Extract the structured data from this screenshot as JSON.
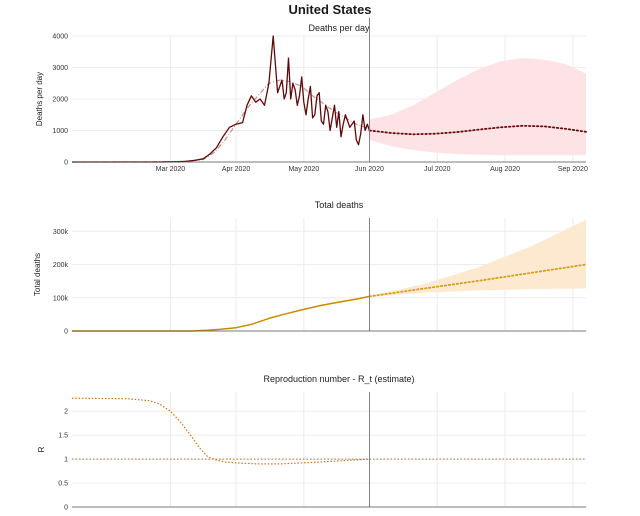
{
  "page": {
    "title": "United States"
  },
  "chart_data": [
    {
      "id": "deaths",
      "type": "line",
      "title": "Deaths per day",
      "ylabel": "Deaths per day",
      "xlabel": "",
      "ylim": [
        0,
        4000
      ],
      "y_ticks": [
        0,
        1000,
        2000,
        3000,
        4000
      ],
      "y_tick_labels": [
        "0",
        "1000",
        "2000",
        "3000",
        "4000"
      ],
      "x_range_days": [
        0,
        235
      ],
      "x_ticks_days": [
        45,
        75,
        106,
        136,
        167,
        198,
        229
      ],
      "x_tick_labels": [
        "Mar 2020",
        "Apr 2020",
        "May 2020",
        "Jun 2020",
        "Jul 2020",
        "Aug 2020",
        "Sep 2020"
      ],
      "vline_day": 136,
      "colors": {
        "observed": "#5e0a0a",
        "smoothed": "#c98f8f",
        "forecast": "#6b0c0c",
        "band": "#fde3e6"
      },
      "observed": {
        "x": [
          0,
          40,
          44,
          48,
          52,
          56,
          60,
          63,
          66,
          69,
          72,
          75,
          78,
          80,
          82,
          84,
          86,
          88,
          90,
          92,
          94,
          95,
          96,
          97,
          98,
          99,
          100,
          101,
          102,
          103,
          104,
          105,
          106,
          107,
          108,
          109,
          110,
          111,
          112,
          113,
          114,
          115,
          116,
          117,
          118,
          119,
          120,
          121,
          122,
          123,
          124,
          125,
          126,
          127,
          128,
          129,
          130,
          131,
          132,
          133,
          134,
          135,
          136
        ],
        "y": [
          0,
          0,
          5,
          10,
          20,
          50,
          100,
          250,
          450,
          800,
          1100,
          1200,
          1250,
          1800,
          2100,
          1900,
          2000,
          1800,
          2500,
          4000,
          2200,
          2400,
          2600,
          2000,
          2200,
          3300,
          2000,
          2500,
          2300,
          1800,
          2100,
          2700,
          1900,
          1500,
          2000,
          2400,
          1400,
          1500,
          2100,
          2200,
          1300,
          1200,
          1800,
          1600,
          1000,
          1400,
          1800,
          1100,
          1600,
          800,
          1200,
          1500,
          1300,
          1100,
          1200,
          1300,
          700,
          550,
          900,
          1500,
          1000,
          1200,
          1000
        ]
      },
      "smoothed": {
        "x": [
          0,
          50,
          60,
          65,
          70,
          75,
          80,
          85,
          90,
          95,
          100,
          105,
          110,
          115,
          120,
          125,
          130,
          136
        ],
        "y": [
          0,
          10,
          80,
          300,
          700,
          1200,
          1700,
          2100,
          2500,
          2600,
          2550,
          2400,
          2100,
          1850,
          1600,
          1400,
          1200,
          1050
        ]
      },
      "forecast": {
        "x": [
          136,
          146,
          156,
          166,
          176,
          186,
          196,
          206,
          216,
          226,
          235
        ],
        "y": [
          1000,
          920,
          880,
          900,
          950,
          1030,
          1100,
          1150,
          1130,
          1050,
          960
        ]
      },
      "band": {
        "x": [
          136,
          146,
          156,
          166,
          176,
          186,
          196,
          206,
          216,
          226,
          235
        ],
        "upper": [
          1350,
          1500,
          1800,
          2200,
          2600,
          2950,
          3200,
          3300,
          3250,
          3100,
          2800
        ],
        "lower": [
          700,
          500,
          380,
          300,
          250,
          230,
          220,
          220,
          220,
          220,
          220
        ]
      }
    },
    {
      "id": "total",
      "type": "line",
      "title": "Total deaths",
      "ylabel": "Total deaths",
      "xlabel": "",
      "ylim": [
        0,
        340000
      ],
      "y_ticks": [
        0,
        100000,
        200000,
        300000
      ],
      "y_tick_labels": [
        "0",
        "100k",
        "200k",
        "300k"
      ],
      "x_range_days": [
        0,
        235
      ],
      "x_ticks_days": [
        45,
        75,
        106,
        136,
        167,
        198,
        229
      ],
      "vline_day": 136,
      "colors": {
        "observed": "#c98a00",
        "forecast": "#d4a020",
        "band": "#fde9cf"
      },
      "observed": {
        "x": [
          0,
          55,
          62,
          68,
          75,
          82,
          90,
          98,
          106,
          114,
          122,
          130,
          136
        ],
        "y": [
          0,
          100,
          2000,
          5000,
          10000,
          20000,
          38000,
          52000,
          65000,
          77000,
          87000,
          96000,
          104000
        ]
      },
      "forecast": {
        "x": [
          136,
          160,
          185,
          210,
          235
        ],
        "y": [
          104000,
          127000,
          150000,
          175000,
          200000
        ]
      },
      "band": {
        "x": [
          136,
          160,
          185,
          210,
          235
        ],
        "upper": [
          106000,
          140000,
          190000,
          255000,
          335000
        ],
        "lower": [
          102000,
          115000,
          122000,
          126000,
          128000
        ]
      }
    },
    {
      "id": "rt",
      "type": "line",
      "title": "Reproduction number - R_t (estimate)",
      "ylabel": "R",
      "xlabel": "",
      "ylim": [
        0,
        2.4
      ],
      "y_ticks": [
        0,
        0.5,
        1,
        1.5,
        2
      ],
      "y_tick_labels": [
        "0",
        "0.5",
        "1",
        "1.5",
        "2"
      ],
      "x_range_days": [
        0,
        235
      ],
      "x_ticks_days": [
        45,
        75,
        106,
        136,
        167,
        198,
        229
      ],
      "vline_day": 136,
      "reference_y": 1,
      "colors": {
        "estimate": "#c9761e",
        "reference": "#b87040"
      },
      "estimate": {
        "x": [
          0,
          25,
          35,
          40,
          45,
          50,
          55,
          58,
          62,
          66,
          70,
          75,
          85,
          95,
          110,
          125,
          136
        ],
        "y": [
          2.27,
          2.26,
          2.22,
          2.15,
          2.0,
          1.75,
          1.45,
          1.25,
          1.05,
          0.98,
          0.94,
          0.92,
          0.9,
          0.9,
          0.93,
          0.97,
          1.0
        ]
      }
    }
  ]
}
